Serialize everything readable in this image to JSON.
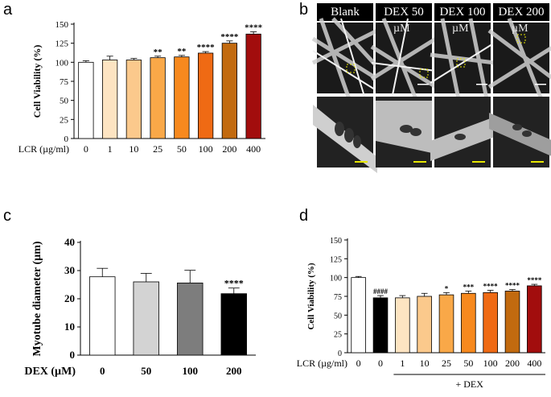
{
  "panels": {
    "a": "a",
    "b": "b",
    "c": "c",
    "d": "d"
  },
  "chart_data": [
    {
      "id": "a",
      "type": "bar",
      "ylabel": "Cell Viability (%)",
      "xlabel": "LCR (µg/ml)",
      "categories": [
        "0",
        "1",
        "10",
        "25",
        "50",
        "100",
        "200",
        "400"
      ],
      "values": [
        100,
        103,
        103,
        106,
        107,
        112,
        125,
        137
      ],
      "errors": [
        2,
        5,
        2,
        2,
        2,
        2,
        3,
        3
      ],
      "significance": [
        "",
        "",
        "",
        "**",
        "**",
        "****",
        "****",
        "****"
      ],
      "colors": [
        "#ffffff",
        "#fde4c2",
        "#fbc98c",
        "#f9a848",
        "#f7891e",
        "#ef6a14",
        "#c26a0f",
        "#a20d0d"
      ],
      "ylim": [
        0,
        150
      ],
      "yticks": [
        0,
        25,
        50,
        75,
        100,
        125,
        150
      ]
    },
    {
      "id": "c",
      "type": "bar",
      "ylabel": "Myotube diameter (µm)",
      "xlabel": "DEX (µM)",
      "categories": [
        "0",
        "50",
        "100",
        "200"
      ],
      "values": [
        27.8,
        26.0,
        25.6,
        21.8
      ],
      "errors": [
        3.0,
        3.0,
        4.5,
        2.0
      ],
      "significance": [
        "",
        "",
        "",
        "****"
      ],
      "colors": [
        "#ffffff",
        "#d3d3d3",
        "#7d7d7d",
        "#000000"
      ],
      "ylim": [
        0,
        40
      ],
      "yticks": [
        0,
        10,
        20,
        30,
        40
      ]
    },
    {
      "id": "d",
      "type": "bar",
      "ylabel": "Cell Viability (%)",
      "xlabel": "LCR (µg/ml)",
      "group_label": "+ DEX",
      "categories": [
        "0",
        "0",
        "1",
        "10",
        "25",
        "50",
        "100",
        "200",
        "400"
      ],
      "values": [
        100,
        73,
        73,
        75,
        77,
        79,
        80,
        82,
        89
      ],
      "errors": [
        1.5,
        3,
        3,
        4,
        3,
        3,
        3,
        2,
        2
      ],
      "significance": [
        "",
        "####",
        "",
        "",
        "*",
        "***",
        "****",
        "****",
        "****"
      ],
      "colors": [
        "#ffffff",
        "#000000",
        "#fde4c2",
        "#fbc98c",
        "#f9a848",
        "#f7891e",
        "#ef6a14",
        "#c26a0f",
        "#a20d0d"
      ],
      "ylim": [
        0,
        150
      ],
      "yticks": [
        0,
        25,
        50,
        75,
        100,
        125,
        150
      ]
    }
  ],
  "micrographs": {
    "headers": [
      "Blank",
      "DEX 50",
      "DEX 100",
      "DEX 200"
    ],
    "unit": "µM"
  }
}
